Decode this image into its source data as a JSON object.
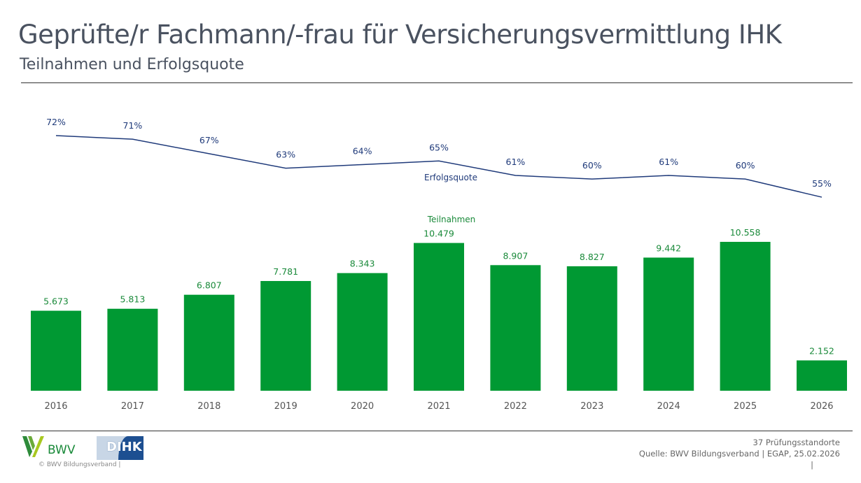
{
  "header": {
    "title": "Geprüfte/r Fachmann/-frau für Versicherungsvermittlung IHK",
    "subtitle": "Teilnahmen und Erfolgsquote"
  },
  "chart_data": {
    "type": "bar+line",
    "categories": [
      "2016",
      "2017",
      "2018",
      "2019",
      "2020",
      "2021",
      "2022",
      "2023",
      "2024",
      "2025",
      "2026"
    ],
    "series": [
      {
        "name": "Teilnahmen",
        "type": "bar",
        "color": "#009933",
        "values": [
          5673,
          5813,
          6807,
          7781,
          8343,
          10479,
          8907,
          8827,
          9442,
          10558,
          2152
        ],
        "labels": [
          "5.673",
          "5.813",
          "6.807",
          "7.781",
          "8.343",
          "10.479",
          "8.907",
          "8.827",
          "9.442",
          "10.558",
          "2.152"
        ]
      },
      {
        "name": "Erfolgsquote",
        "type": "line",
        "color": "#1f3a7a",
        "values": [
          72,
          71,
          67,
          63,
          64,
          65,
          61,
          60,
          61,
          60,
          55
        ],
        "labels": [
          "72%",
          "71%",
          "67%",
          "63%",
          "64%",
          "65%",
          "61%",
          "60%",
          "61%",
          "60%",
          "55%"
        ]
      }
    ],
    "grid": false
  },
  "footer": {
    "logo_bwv": "BWV",
    "logo_dihk": "DIHK",
    "copyright": "©  BWV Bildungsverband  |",
    "locations": "37 Prüfungsstandorte",
    "source": "Quelle: BWV Bildungsverband | EGAP, 25.02.2026",
    "sep": "|"
  }
}
